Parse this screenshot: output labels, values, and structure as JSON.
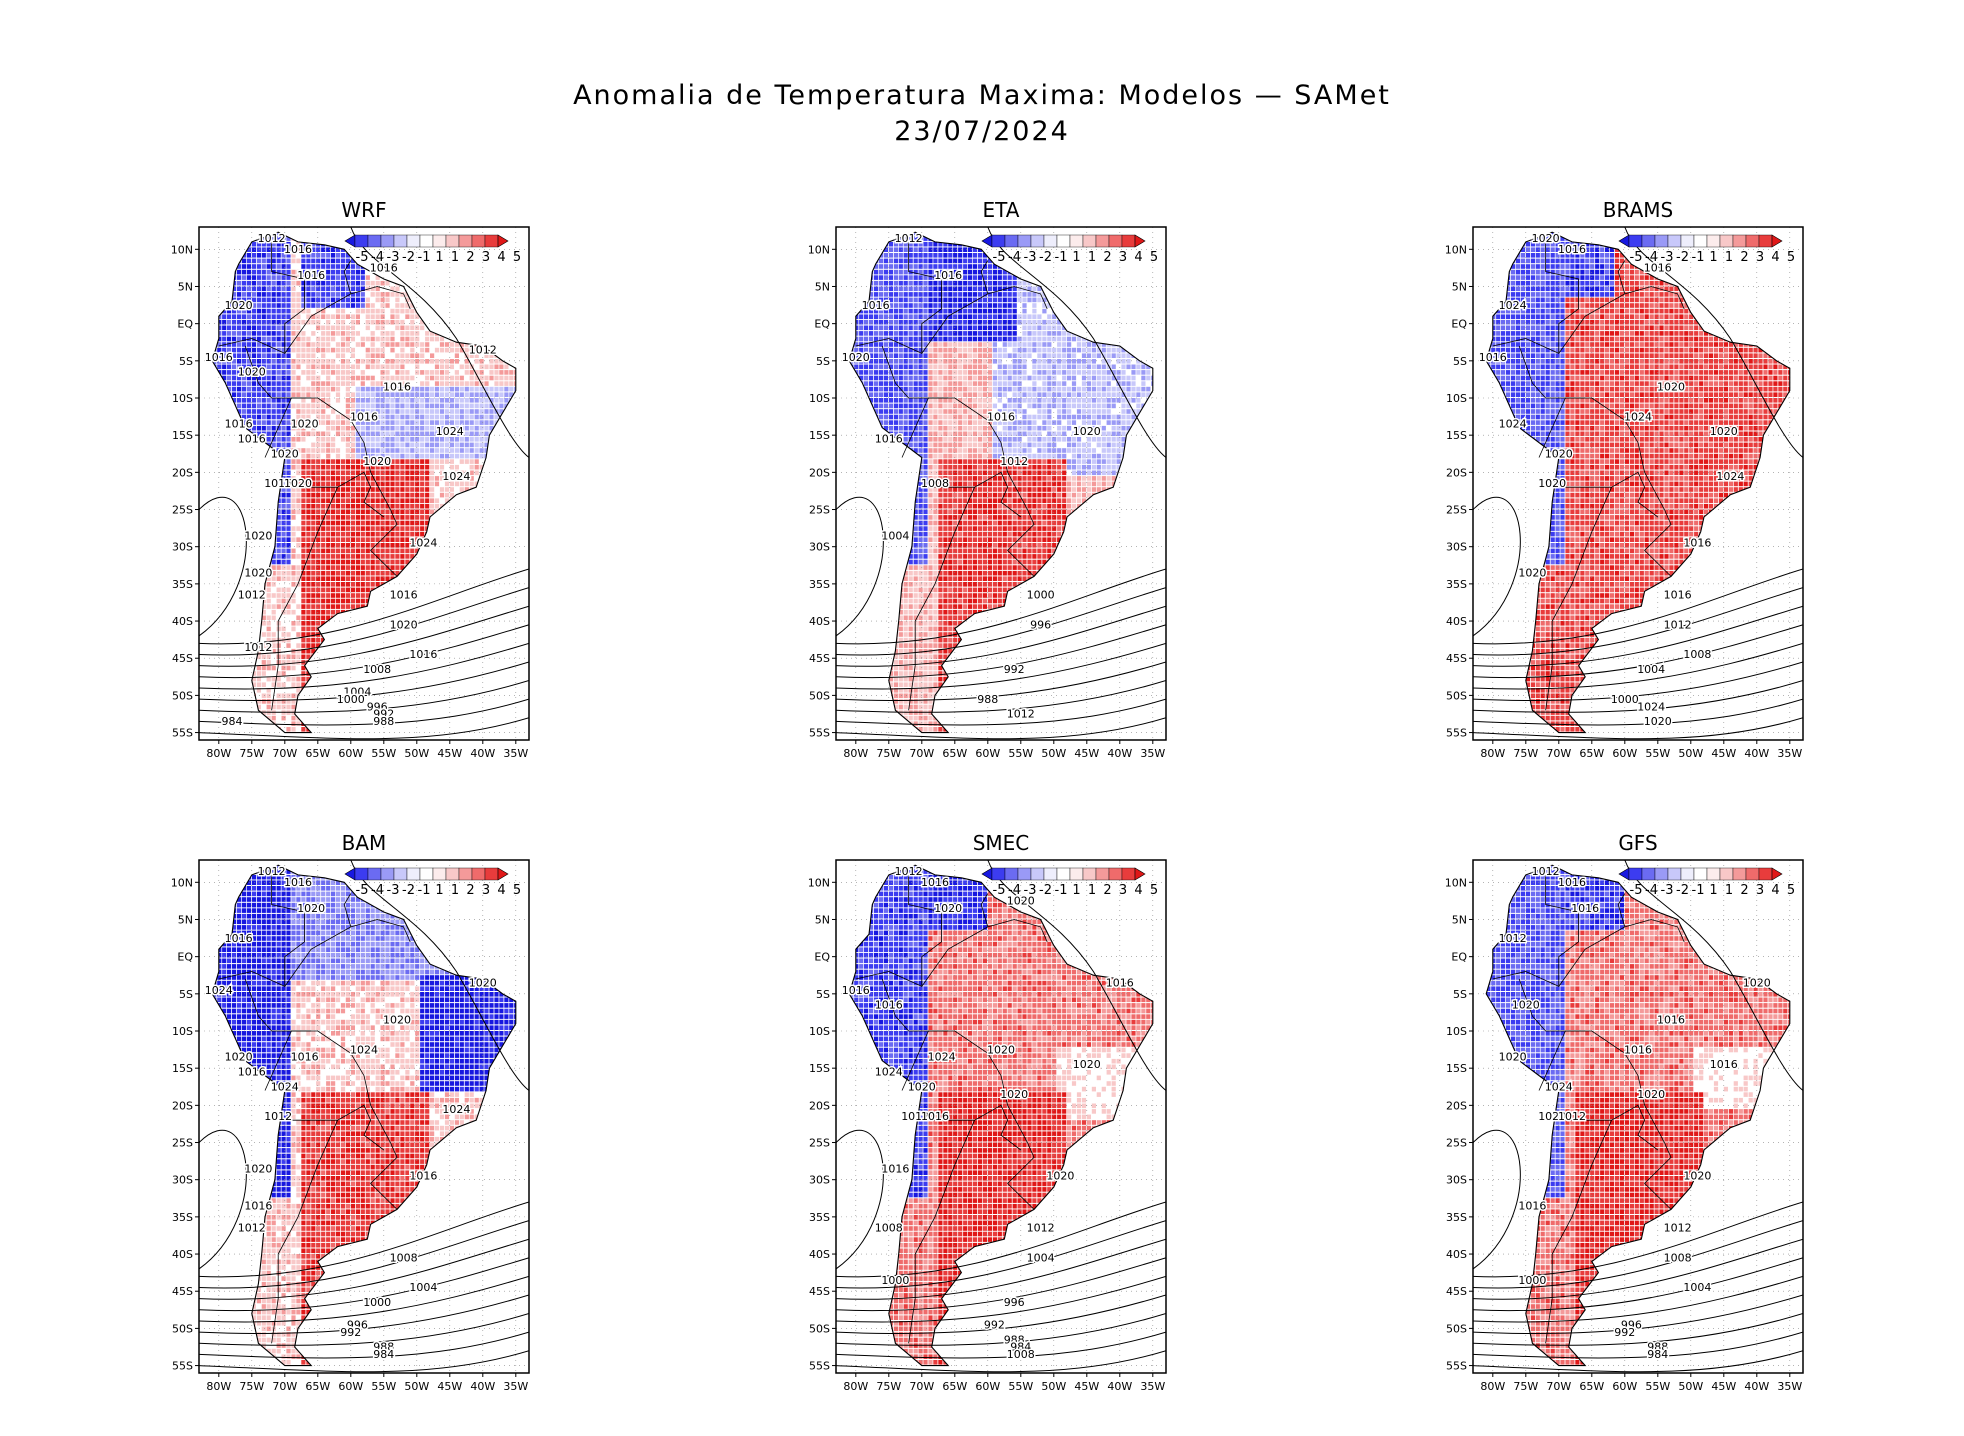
{
  "title": {
    "line1": "Anomalia de Temperatura Maxima: Modelos — SAMet",
    "line2": "23/07/2024"
  },
  "axes": {
    "lat_ticks": [
      "10N",
      "5N",
      "EQ",
      "5S",
      "10S",
      "15S",
      "20S",
      "25S",
      "30S",
      "35S",
      "40S",
      "45S",
      "50S",
      "55S"
    ],
    "lon_ticks": [
      "80W",
      "75W",
      "70W",
      "65W",
      "60W",
      "55W",
      "50W",
      "45W",
      "40W",
      "35W"
    ],
    "lon_range_deg": [
      -83,
      -33
    ],
    "lat_range_deg": [
      -56,
      13
    ]
  },
  "colorbar": {
    "labels": [
      "-5",
      "-4",
      "-3",
      "-2",
      "-1",
      "1",
      "1",
      "2",
      "3",
      "4",
      "5"
    ],
    "colors": [
      "#1818e0",
      "#3c3cf0",
      "#6b6bf2",
      "#9a9af6",
      "#c8c8fa",
      "#eeeefc",
      "#ffffff",
      "#fcecec",
      "#f8c8c8",
      "#f49a9a",
      "#ef6b6b",
      "#e83c3c",
      "#e01818"
    ]
  },
  "colors": {
    "land_outline": "#000000",
    "ocean": "#ffffff",
    "grid": "#888888"
  },
  "panels": [
    {
      "name": "WRF",
      "isobar_labels": [
        "1012",
        "1016",
        "1016",
        "1016",
        "1020",
        "1012",
        "1016",
        "1020",
        "1016",
        "1016",
        "1020",
        "1024",
        "1016",
        "1016",
        "1020",
        "1020",
        "1024",
        "1016",
        "1020",
        "1024",
        "1020",
        "1020",
        "1016",
        "1012",
        "1020",
        "1016",
        "1012",
        "1008",
        "1004",
        "1000",
        "996",
        "992",
        "988",
        "984"
      ]
    },
    {
      "name": "ETA",
      "isobar_labels": [
        "1012",
        "1016",
        "1016",
        "1020",
        "1016",
        "1020",
        "1016",
        "1012",
        "1008",
        "1004",
        "1000",
        "996",
        "992",
        "988",
        "1012"
      ]
    },
    {
      "name": "BRAMS",
      "isobar_labels": [
        "1020",
        "1016",
        "1016",
        "1024",
        "1016",
        "1020",
        "1024",
        "1020",
        "1024",
        "1020",
        "1024",
        "1020",
        "1016",
        "1020",
        "1016",
        "1012",
        "1008",
        "1004",
        "1000",
        "1024",
        "1020"
      ]
    },
    {
      "name": "BAM",
      "isobar_labels": [
        "1012",
        "1016",
        "1020",
        "1016",
        "1020",
        "1024",
        "1020",
        "1024",
        "1016",
        "1020",
        "1016",
        "1024",
        "1024",
        "1012",
        "1016",
        "1020",
        "1016",
        "1012",
        "1008",
        "1004",
        "1000",
        "996",
        "992",
        "988",
        "984"
      ]
    },
    {
      "name": "SMEC",
      "isobar_labels": [
        "1012",
        "1016",
        "1020",
        "1020",
        "1016",
        "1016",
        "1016",
        "1020",
        "1024",
        "1020",
        "1024",
        "1020",
        "1020",
        "1012",
        "1016",
        "1020",
        "1016",
        "1012",
        "1008",
        "1004",
        "1000",
        "996",
        "992",
        "988",
        "984",
        "1008"
      ]
    },
    {
      "name": "GFS",
      "isobar_labels": [
        "1012",
        "1016",
        "1016",
        "1012",
        "1020",
        "1020",
        "1016",
        "1016",
        "1016",
        "1020",
        "1024",
        "1020",
        "1020",
        "1012",
        "1020",
        "1016",
        "1012",
        "1008",
        "1004",
        "1000",
        "996",
        "992",
        "988",
        "984"
      ]
    }
  ]
}
